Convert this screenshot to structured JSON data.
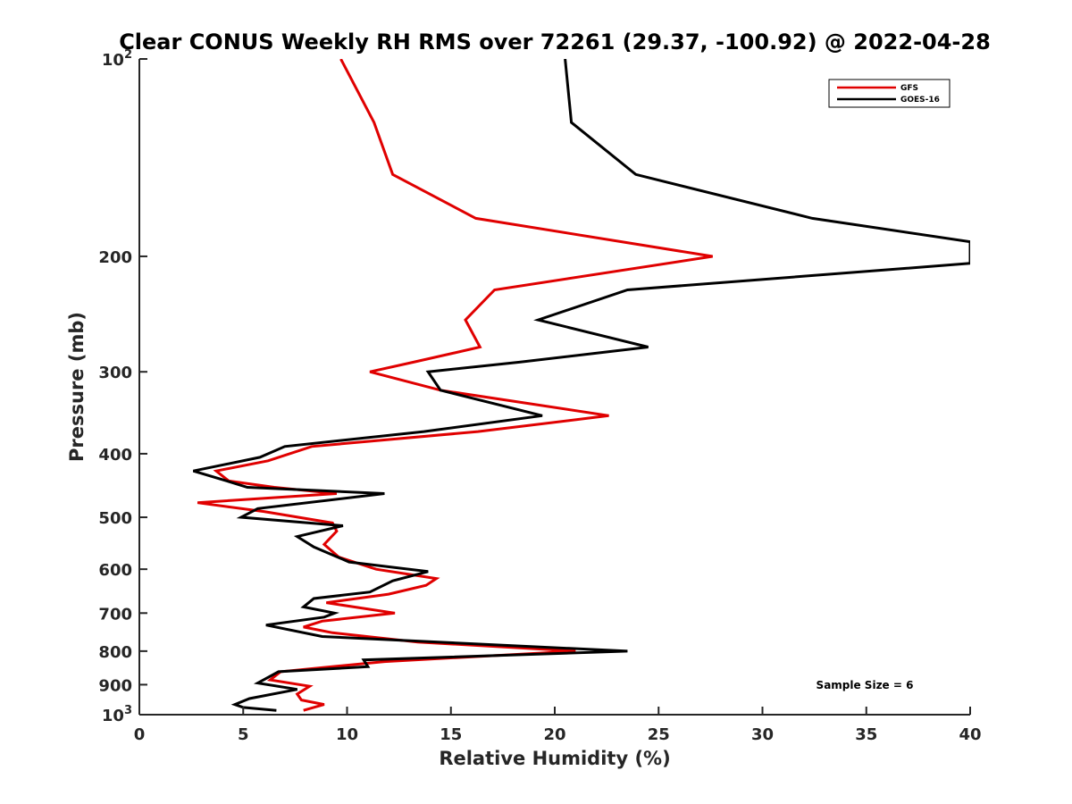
{
  "chart_data": {
    "type": "line",
    "title": "Clear CONUS Weekly RH RMS over 72261 (29.37, -100.92) @ 2022-04-28",
    "xlabel": "Relative Humidity (%)",
    "ylabel": "Pressure (mb)",
    "xlim": [
      0,
      40
    ],
    "ylim": [
      100,
      1000
    ],
    "y_scale": "log",
    "y_reversed": true,
    "x_ticks": [
      0,
      5,
      10,
      15,
      20,
      25,
      30,
      35,
      40
    ],
    "y_tick_labels": [
      {
        "value": 100,
        "base": "10",
        "exp": "2"
      },
      {
        "value": 200,
        "base": "200",
        "exp": ""
      },
      {
        "value": 300,
        "base": "300",
        "exp": ""
      },
      {
        "value": 400,
        "base": "400",
        "exp": ""
      },
      {
        "value": 500,
        "base": "500",
        "exp": ""
      },
      {
        "value": 600,
        "base": "600",
        "exp": ""
      },
      {
        "value": 700,
        "base": "700",
        "exp": ""
      },
      {
        "value": 800,
        "base": "800",
        "exp": ""
      },
      {
        "value": 900,
        "base": "900",
        "exp": ""
      },
      {
        "value": 1000,
        "base": "10",
        "exp": "3"
      }
    ],
    "grid": false,
    "legend_position": "top-right",
    "annotation": "Sample Size = 6",
    "series": [
      {
        "name": "GFS",
        "color": "#e00000",
        "points": [
          [
            9.7,
            100
          ],
          [
            11.3,
            125
          ],
          [
            12.2,
            150
          ],
          [
            16.2,
            175
          ],
          [
            27.6,
            200
          ],
          [
            17.1,
            225
          ],
          [
            15.7,
            250
          ],
          [
            16.4,
            275
          ],
          [
            13.2,
            290
          ],
          [
            11.1,
            300
          ],
          [
            14.5,
            320
          ],
          [
            22.6,
            350
          ],
          [
            16.3,
            370
          ],
          [
            8.3,
            390
          ],
          [
            6.2,
            410
          ],
          [
            3.7,
            425
          ],
          [
            4.3,
            440
          ],
          [
            6.5,
            450
          ],
          [
            9.5,
            460
          ],
          [
            2.8,
            475
          ],
          [
            6.0,
            490
          ],
          [
            9.3,
            510
          ],
          [
            9.5,
            525
          ],
          [
            8.9,
            550
          ],
          [
            9.6,
            575
          ],
          [
            11.4,
            600
          ],
          [
            14.3,
            620
          ],
          [
            13.8,
            635
          ],
          [
            12.0,
            655
          ],
          [
            9.0,
            675
          ],
          [
            12.3,
            700
          ],
          [
            8.8,
            720
          ],
          [
            7.9,
            735
          ],
          [
            9.3,
            750
          ],
          [
            13.4,
            775
          ],
          [
            21.0,
            800
          ],
          [
            11.8,
            830
          ],
          [
            6.8,
            860
          ],
          [
            6.3,
            885
          ],
          [
            8.2,
            905
          ],
          [
            7.6,
            930
          ],
          [
            7.8,
            950
          ],
          [
            8.9,
            965
          ],
          [
            7.9,
            985
          ]
        ]
      },
      {
        "name": "GOES-16",
        "color": "#000000",
        "points": [
          [
            20.5,
            100
          ],
          [
            20.8,
            125
          ],
          [
            23.9,
            150
          ],
          [
            32.4,
            175
          ],
          [
            40.0,
            190
          ],
          [
            40.0,
            205
          ],
          [
            23.5,
            225
          ],
          [
            19.2,
            250
          ],
          [
            24.5,
            275
          ],
          [
            18.3,
            290
          ],
          [
            13.9,
            300
          ],
          [
            14.5,
            320
          ],
          [
            19.4,
            350
          ],
          [
            13.7,
            370
          ],
          [
            7.0,
            390
          ],
          [
            5.8,
            405
          ],
          [
            2.6,
            425
          ],
          [
            4.2,
            440
          ],
          [
            5.2,
            450
          ],
          [
            11.8,
            460
          ],
          [
            5.7,
            485
          ],
          [
            4.9,
            500
          ],
          [
            9.8,
            515
          ],
          [
            7.6,
            535
          ],
          [
            8.4,
            555
          ],
          [
            10.1,
            585
          ],
          [
            13.9,
            605
          ],
          [
            12.2,
            625
          ],
          [
            11.1,
            650
          ],
          [
            8.4,
            665
          ],
          [
            7.9,
            685
          ],
          [
            9.4,
            700
          ],
          [
            8.9,
            710
          ],
          [
            6.1,
            730
          ],
          [
            8.8,
            760
          ],
          [
            23.5,
            800
          ],
          [
            10.8,
            825
          ],
          [
            11.0,
            845
          ],
          [
            6.7,
            860
          ],
          [
            5.7,
            895
          ],
          [
            7.6,
            915
          ],
          [
            5.3,
            945
          ],
          [
            4.6,
            965
          ],
          [
            5.0,
            975
          ],
          [
            6.6,
            985
          ]
        ]
      }
    ]
  }
}
